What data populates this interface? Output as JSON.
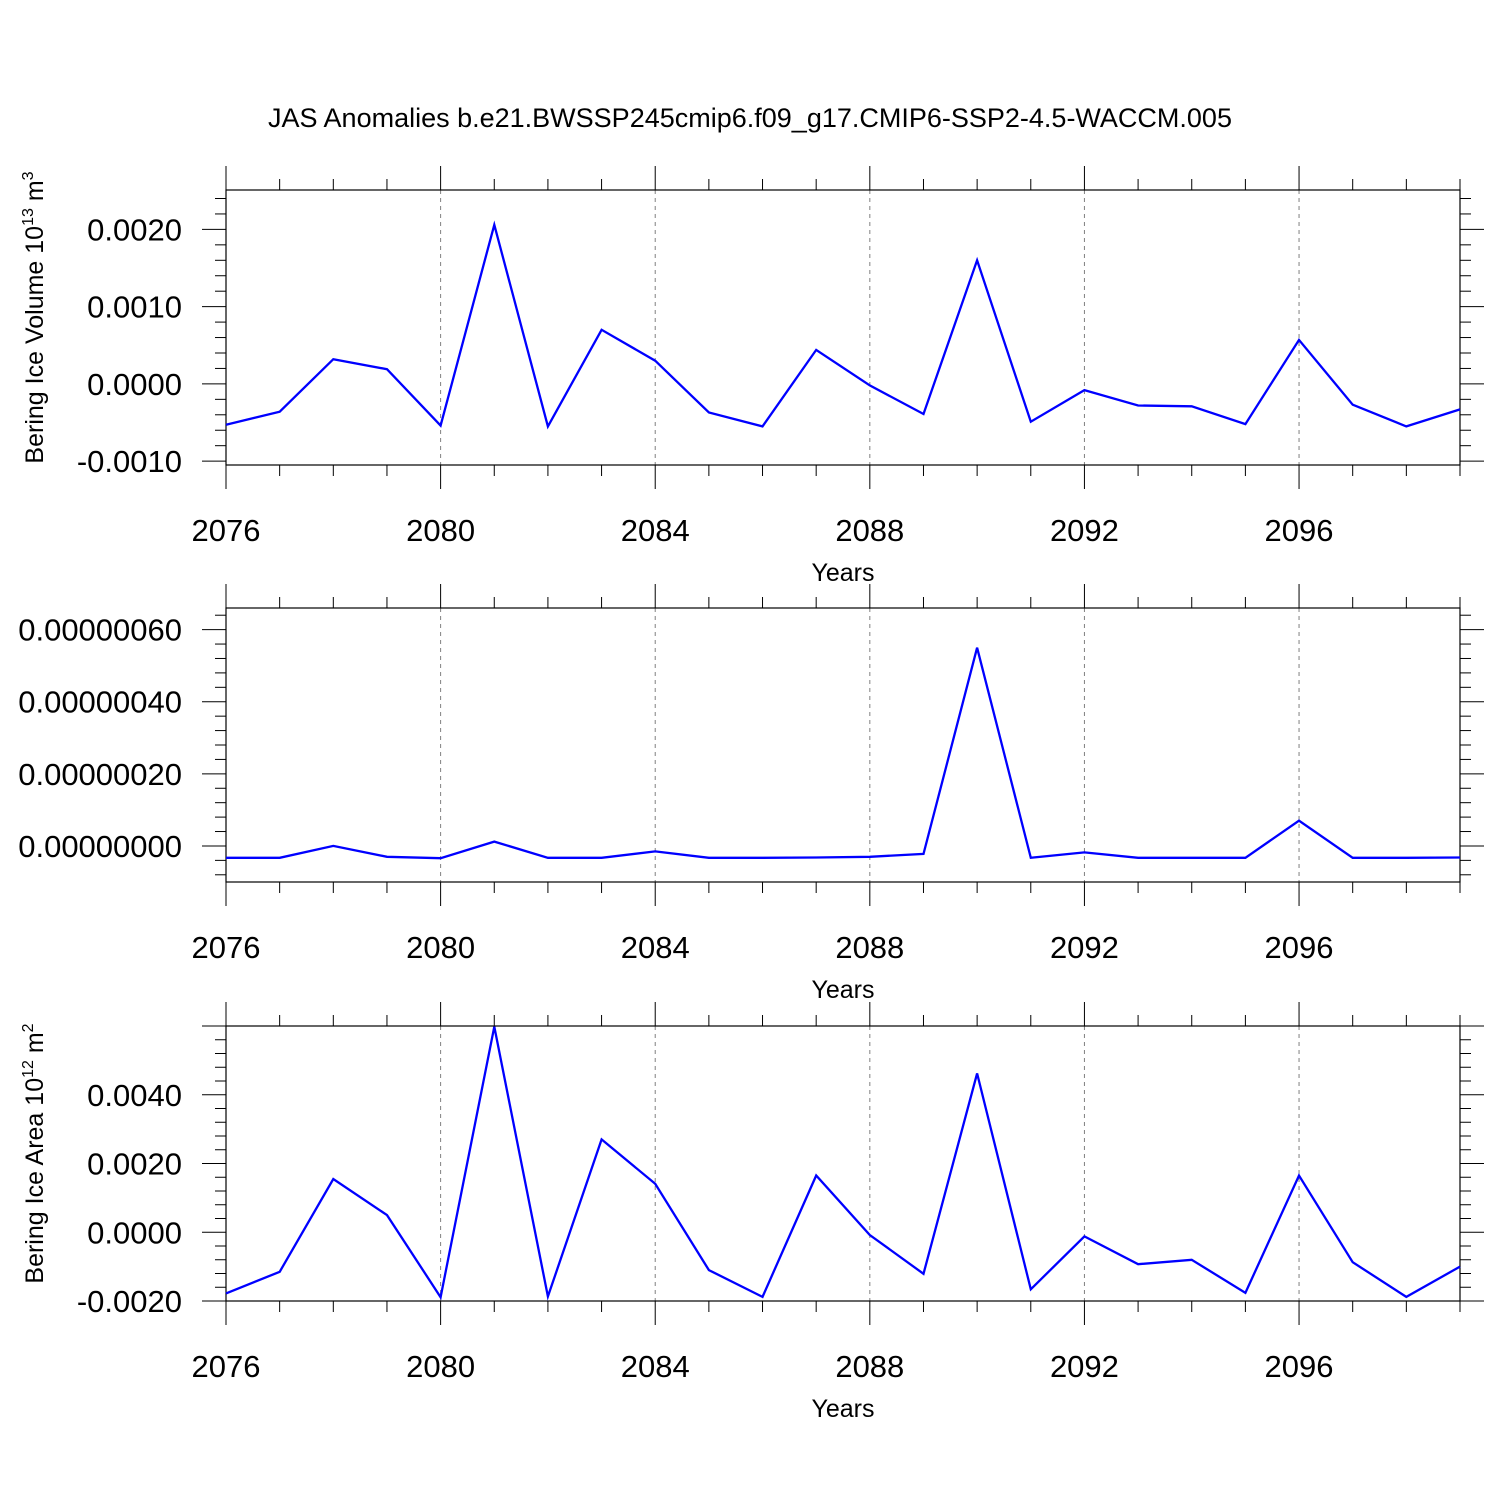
{
  "title": "JAS Anomalies b.e21.BWSSP245cmip6.f09_g17.CMIP6-SSP2-4.5-WACCM.005",
  "colors": {
    "series": "#0000ff",
    "axis": "#000000",
    "grid": "#808080"
  },
  "chart_data": [
    {
      "type": "line",
      "ylabel": {
        "base": "Bering Ice Volume 10",
        "exp": "13",
        "unit": " m",
        "unit_exp": "3"
      },
      "xlabel": "Years",
      "xlim": [
        2076,
        2099
      ],
      "ylim": [
        -0.00105,
        0.00251
      ],
      "xticks": [
        2076,
        2080,
        2084,
        2088,
        2092,
        2096
      ],
      "xtick_labels": [
        "2076",
        "2080",
        "2084",
        "2088",
        "2092",
        "2096"
      ],
      "yticks": [
        -0.001,
        0.0,
        0.001,
        0.002
      ],
      "ytick_labels": [
        "-0.0010",
        "0.0000",
        "0.0010",
        "0.0020"
      ],
      "grid": "vertical dashed at major x ticks",
      "x": [
        2076,
        2077,
        2078,
        2079,
        2080,
        2081,
        2082,
        2083,
        2084,
        2085,
        2086,
        2087,
        2088,
        2089,
        2090,
        2091,
        2092,
        2093,
        2094,
        2095,
        2096,
        2097,
        2098,
        2099
      ],
      "y": [
        -0.00053,
        -0.00036,
        0.00032,
        0.00019,
        -0.00054,
        0.00206,
        -0.00055,
        0.0007,
        0.0003,
        -0.00037,
        -0.00055,
        0.00044,
        -2e-05,
        -0.00039,
        0.0016,
        -0.00049,
        -8e-05,
        -0.00028,
        -0.00029,
        -0.00052,
        0.00057,
        -0.00027,
        -0.00055,
        -0.00033
      ]
    },
    {
      "type": "line",
      "xlabel": "Years",
      "xlim": [
        2076,
        2099
      ],
      "ylim": [
        -1e-07,
        6.6e-07
      ],
      "xticks": [
        2076,
        2080,
        2084,
        2088,
        2092,
        2096
      ],
      "xtick_labels": [
        "2076",
        "2080",
        "2084",
        "2088",
        "2092",
        "2096"
      ],
      "yticks": [
        0.0,
        2e-07,
        4e-07,
        6e-07
      ],
      "ytick_labels": [
        "0.00000000",
        "0.00000020",
        "0.00000040",
        "0.00000060"
      ],
      "grid": "vertical dashed at major x ticks",
      "x": [
        2076,
        2077,
        2078,
        2079,
        2080,
        2081,
        2082,
        2083,
        2084,
        2085,
        2086,
        2087,
        2088,
        2089,
        2090,
        2091,
        2092,
        2093,
        2094,
        2095,
        2096,
        2097,
        2098,
        2099
      ],
      "y": [
        -3.3e-08,
        -3.3e-08,
        0.0,
        -3e-08,
        -3.4e-08,
        1.2e-08,
        -3.3e-08,
        -3.3e-08,
        -1.5e-08,
        -3.3e-08,
        -3.3e-08,
        -3.2e-08,
        -3e-08,
        -2.2e-08,
        5.5e-07,
        -3.3e-08,
        -1.8e-08,
        -3.3e-08,
        -3.3e-08,
        -3.3e-08,
        7e-08,
        -3.3e-08,
        -3.3e-08,
        -3.2e-08
      ]
    },
    {
      "type": "line",
      "ylabel": {
        "base": "Bering Ice Area 10",
        "exp": "12",
        "unit": " m",
        "unit_exp": "2"
      },
      "xlabel": "Years",
      "xlim": [
        2076,
        2099
      ],
      "ylim": [
        -0.002,
        0.006
      ],
      "xticks": [
        2076,
        2080,
        2084,
        2088,
        2092,
        2096
      ],
      "xtick_labels": [
        "2076",
        "2080",
        "2084",
        "2088",
        "2092",
        "2096"
      ],
      "yticks": [
        -0.002,
        0.0,
        0.002,
        0.004
      ],
      "ytick_labels": [
        "-0.0020",
        "0.0000",
        "0.0020",
        "0.0040"
      ],
      "grid": "vertical dashed at major x ticks",
      "x": [
        2076,
        2077,
        2078,
        2079,
        2080,
        2081,
        2082,
        2083,
        2084,
        2085,
        2086,
        2087,
        2088,
        2089,
        2090,
        2091,
        2092,
        2093,
        2094,
        2095,
        2096,
        2097,
        2098,
        2099
      ],
      "y": [
        -0.00178,
        -0.00115,
        0.00155,
        0.0005,
        -0.00189,
        0.00598,
        -0.00187,
        0.0027,
        0.00141,
        -0.0011,
        -0.00188,
        0.00165,
        -8e-05,
        -0.00121,
        0.00462,
        -0.00166,
        -0.00012,
        -0.00093,
        -0.0008,
        -0.00176,
        0.00165,
        -0.00087,
        -0.00188,
        -0.001
      ]
    }
  ]
}
